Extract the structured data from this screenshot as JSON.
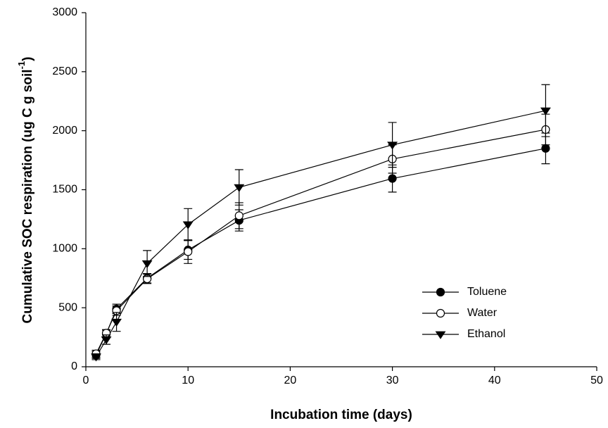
{
  "chart_data": {
    "type": "line",
    "x_label": "Incubation time (days)",
    "y_label": "Cumulative SOC respiration (ug C g soil",
    "y_label_sup": "-1",
    "y_label_end": ")",
    "x": [
      1,
      2,
      3,
      6,
      10,
      15,
      30,
      45
    ],
    "series": [
      {
        "name": "Toluene",
        "color": "#000000",
        "marker": "circle-filled",
        "values": [
          100,
          280,
          490,
          750,
          990,
          1240,
          1595,
          1850
        ],
        "errors": [
          30,
          30,
          40,
          40,
          80,
          90,
          115,
          130
        ]
      },
      {
        "name": "Water",
        "color": "#000000",
        "marker": "circle-open",
        "values": [
          110,
          285,
          475,
          745,
          975,
          1280,
          1760,
          2010
        ],
        "errors": [
          30,
          30,
          40,
          40,
          100,
          110,
          120,
          130
        ]
      },
      {
        "name": "Ethanol",
        "color": "#000000",
        "marker": "triangle-down",
        "values": [
          85,
          230,
          380,
          875,
          1205,
          1520,
          1880,
          2170
        ],
        "errors": [
          25,
          40,
          80,
          110,
          135,
          150,
          190,
          220
        ]
      }
    ],
    "xlim": [
      0,
      50
    ],
    "xticks": [
      0,
      10,
      20,
      30,
      40,
      50
    ],
    "ylim": [
      0,
      3000
    ],
    "yticks": [
      0,
      500,
      1000,
      1500,
      2000,
      2500,
      3000
    ],
    "grid": false,
    "legend": "lower right"
  }
}
